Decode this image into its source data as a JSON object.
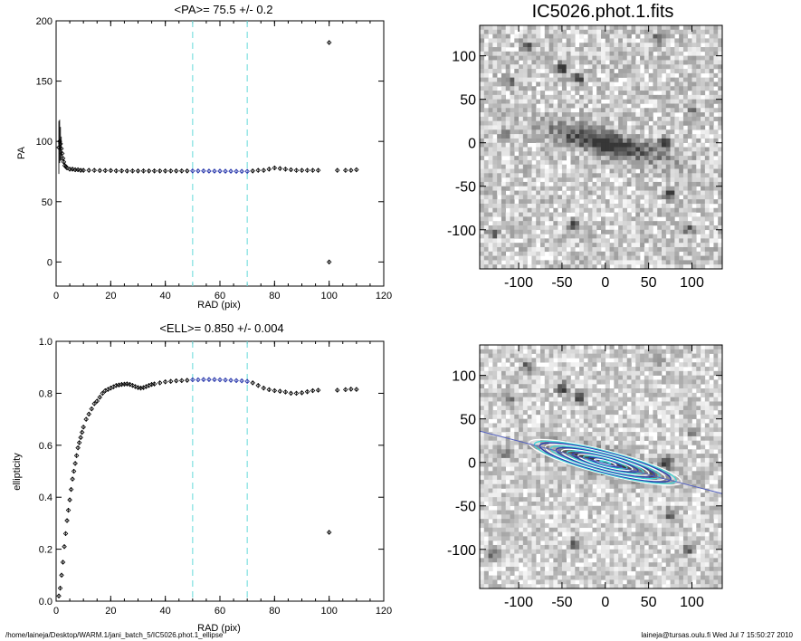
{
  "chart_data": [
    {
      "type": "scatter",
      "title": "<PA>=  75.5 +/-   0.2",
      "xlabel": "RAD (pix)",
      "ylabel": "PA",
      "xlim": [
        0,
        120
      ],
      "ylim": [
        -20,
        200
      ],
      "xticks": [
        0,
        20,
        40,
        60,
        80,
        100,
        120
      ],
      "yticks": [
        0,
        50,
        100,
        150,
        200
      ],
      "reference_lines_x": [
        50,
        70
      ],
      "points": [
        [
          1,
          95
        ],
        [
          1.3,
          100
        ],
        [
          1.6,
          98
        ],
        [
          1.9,
          94
        ],
        [
          2.2,
          90
        ],
        [
          2.5,
          86
        ],
        [
          2.8,
          83
        ],
        [
          3.2,
          80
        ],
        [
          3.6,
          79
        ],
        [
          4,
          78
        ],
        [
          5,
          77
        ],
        [
          6,
          77
        ],
        [
          7,
          76.5
        ],
        [
          8,
          76.5
        ],
        [
          9,
          76
        ],
        [
          10,
          76
        ],
        [
          12,
          76
        ],
        [
          14,
          76
        ],
        [
          16,
          75.8
        ],
        [
          18,
          75.8
        ],
        [
          20,
          75.8
        ],
        [
          22,
          75.6
        ],
        [
          24,
          75.6
        ],
        [
          26,
          75.5
        ],
        [
          28,
          75.5
        ],
        [
          30,
          75.5
        ],
        [
          32,
          75.5
        ],
        [
          34,
          75.5
        ],
        [
          36,
          75.5
        ],
        [
          38,
          75.5
        ],
        [
          40,
          75.5
        ],
        [
          42,
          75.5
        ],
        [
          44,
          75.5
        ],
        [
          46,
          75.5
        ],
        [
          48,
          75.5
        ],
        [
          50,
          75.5
        ],
        [
          52,
          75.5
        ],
        [
          54,
          75.5
        ],
        [
          56,
          75.4
        ],
        [
          58,
          75.4
        ],
        [
          60,
          75.4
        ],
        [
          62,
          75.3
        ],
        [
          64,
          75.3
        ],
        [
          66,
          75.2
        ],
        [
          68,
          75.2
        ],
        [
          70,
          75.2
        ],
        [
          72,
          75.5
        ],
        [
          74,
          76
        ],
        [
          76,
          76
        ],
        [
          78,
          77
        ],
        [
          80,
          78
        ],
        [
          82,
          77.5
        ],
        [
          84,
          77
        ],
        [
          86,
          76.5
        ],
        [
          88,
          76
        ],
        [
          90,
          76
        ],
        [
          92,
          76
        ],
        [
          94,
          76
        ],
        [
          96,
          76
        ],
        [
          100,
          182
        ],
        [
          100,
          0
        ],
        [
          103,
          76
        ],
        [
          106,
          76
        ],
        [
          108,
          76
        ],
        [
          110,
          76.5
        ]
      ],
      "highlight_range": [
        50,
        70
      ],
      "highlight_color": "#1f2fa8"
    },
    {
      "type": "image",
      "title": "IC5026.phot.1.fits",
      "xticks": [
        -100,
        -50,
        0,
        50,
        100
      ],
      "yticks": [
        100,
        50,
        0,
        -50,
        -100
      ],
      "xlim": [
        -145,
        135
      ],
      "ylim": [
        -145,
        135
      ]
    },
    {
      "type": "scatter",
      "title": "<ELL>= 0.850 +/-  0.004",
      "xlabel": "RAD (pix)",
      "ylabel": "ellipticity",
      "xlim": [
        0,
        120
      ],
      "ylim": [
        0,
        1.0
      ],
      "xticks": [
        0,
        20,
        40,
        60,
        80,
        100,
        120
      ],
      "yticks": [
        0.0,
        0.2,
        0.4,
        0.6,
        0.8,
        1.0
      ],
      "reference_lines_x": [
        50,
        70
      ],
      "points": [
        [
          1,
          0.02
        ],
        [
          1.5,
          0.05
        ],
        [
          2,
          0.1
        ],
        [
          2.5,
          0.15
        ],
        [
          3,
          0.21
        ],
        [
          3.5,
          0.26
        ],
        [
          4,
          0.31
        ],
        [
          4.5,
          0.35
        ],
        [
          5,
          0.39
        ],
        [
          5.5,
          0.43
        ],
        [
          6,
          0.47
        ],
        [
          6.5,
          0.5
        ],
        [
          7,
          0.53
        ],
        [
          7.5,
          0.56
        ],
        [
          8,
          0.59
        ],
        [
          8.5,
          0.61
        ],
        [
          9,
          0.63
        ],
        [
          9.5,
          0.65
        ],
        [
          10,
          0.67
        ],
        [
          11,
          0.7
        ],
        [
          12,
          0.72
        ],
        [
          13,
          0.74
        ],
        [
          14,
          0.76
        ],
        [
          15,
          0.77
        ],
        [
          16,
          0.785
        ],
        [
          17,
          0.8
        ],
        [
          18,
          0.81
        ],
        [
          19,
          0.815
        ],
        [
          20,
          0.82
        ],
        [
          21,
          0.825
        ],
        [
          22,
          0.83
        ],
        [
          23,
          0.832
        ],
        [
          24,
          0.834
        ],
        [
          25,
          0.835
        ],
        [
          26,
          0.836
        ],
        [
          27,
          0.834
        ],
        [
          28,
          0.83
        ],
        [
          29,
          0.826
        ],
        [
          30,
          0.822
        ],
        [
          31,
          0.82
        ],
        [
          32,
          0.822
        ],
        [
          33,
          0.826
        ],
        [
          34,
          0.83
        ],
        [
          35,
          0.834
        ],
        [
          36,
          0.836
        ],
        [
          38,
          0.84
        ],
        [
          40,
          0.844
        ],
        [
          42,
          0.846
        ],
        [
          44,
          0.848
        ],
        [
          46,
          0.849
        ],
        [
          48,
          0.85
        ],
        [
          50,
          0.852
        ],
        [
          52,
          0.852
        ],
        [
          54,
          0.853
        ],
        [
          56,
          0.853
        ],
        [
          58,
          0.853
        ],
        [
          60,
          0.852
        ],
        [
          62,
          0.851
        ],
        [
          64,
          0.85
        ],
        [
          66,
          0.849
        ],
        [
          68,
          0.848
        ],
        [
          70,
          0.846
        ],
        [
          72,
          0.84
        ],
        [
          74,
          0.83
        ],
        [
          76,
          0.82
        ],
        [
          78,
          0.814
        ],
        [
          80,
          0.81
        ],
        [
          82,
          0.808
        ],
        [
          84,
          0.805
        ],
        [
          86,
          0.8
        ],
        [
          88,
          0.8
        ],
        [
          90,
          0.802
        ],
        [
          92,
          0.806
        ],
        [
          94,
          0.81
        ],
        [
          96,
          0.812
        ],
        [
          100,
          0.265
        ],
        [
          103,
          0.812
        ],
        [
          106,
          0.814
        ],
        [
          108,
          0.816
        ],
        [
          110,
          0.815
        ]
      ],
      "highlight_range": [
        50,
        70
      ],
      "highlight_color": "#1f2fa8"
    },
    {
      "type": "image",
      "xticks": [
        -100,
        -50,
        0,
        50,
        100
      ],
      "yticks": [
        100,
        50,
        0,
        -50,
        -100
      ],
      "xlim": [
        -145,
        135
      ],
      "ylim": [
        -145,
        135
      ],
      "overlay_colors": [
        "#3fd6d6",
        "#2838b0",
        "#ffffff"
      ]
    }
  ],
  "footer": {
    "left": "/home/laineja/Desktop/WARM.1/jani_batch_5/IC5026.phot.1_ellipse",
    "right": "laineja@tursas.oulu.fi  Wed Jul  7 15:50:27 2010"
  },
  "colors": {
    "reference_line": "#7ee0e0",
    "axis": "#000000"
  }
}
